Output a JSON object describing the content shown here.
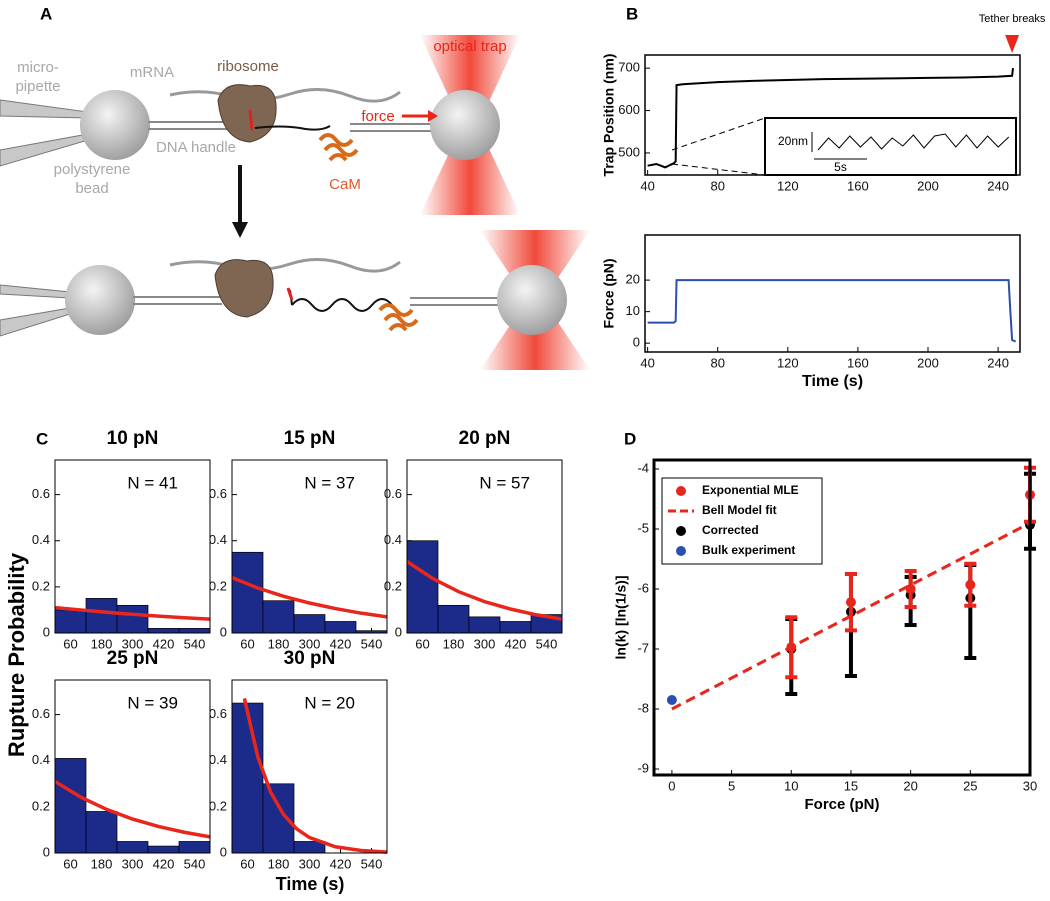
{
  "panel_labels": [
    "A",
    "B",
    "C",
    "D"
  ],
  "diagram": {
    "pipette": [
      "micro-",
      "pipette"
    ],
    "bead": [
      "polystyrene",
      "bead"
    ],
    "mrna": "mRNA",
    "ribosome": "ribosome",
    "dna_handle": "DNA handle",
    "cam": "CaM",
    "force": "force",
    "optical_trap": "optical trap"
  },
  "figure_c": {
    "ylabel": "Rupture Probability",
    "xlabel": "Time (s)"
  },
  "chart_data": [
    {
      "type": "line",
      "ylabel": "Trap Position (nm)",
      "xlim": [
        38.5,
        252.5
      ],
      "ylim": [
        448,
        731
      ],
      "xticks": [
        40,
        80,
        120,
        160,
        200,
        240
      ],
      "yticks": [
        500,
        600,
        700
      ],
      "x": [
        40,
        45,
        50,
        55,
        56,
        56.5,
        60,
        80,
        100,
        120,
        140,
        160,
        180,
        200,
        220,
        240,
        248,
        248.5
      ],
      "series": [
        {
          "color": "#000000",
          "values": [
            470,
            474,
            466,
            476,
            480,
            660,
            662,
            667,
            670,
            672,
            674,
            675,
            676,
            677,
            678,
            680,
            682,
            700
          ]
        }
      ],
      "annotation": {
        "text": "Tether breaks",
        "x": 248
      },
      "inset": {
        "x": [
          0,
          1,
          2,
          3,
          4,
          5,
          6,
          7,
          8,
          9,
          10,
          11,
          12,
          13,
          14,
          15,
          16,
          17,
          18
        ],
        "values": [
          0,
          12,
          2,
          14,
          3,
          13,
          1,
          12,
          4,
          15,
          2,
          14,
          16,
          3,
          15,
          2,
          14,
          3,
          13
        ],
        "scalebar_y": {
          "value": 20,
          "label": "20nm"
        },
        "scalebar_x": {
          "value": 5,
          "label": "5s"
        }
      }
    },
    {
      "type": "line",
      "ylabel": "Force (pN)",
      "xlabel": "Time (s)",
      "xlim": [
        38.5,
        252.5
      ],
      "ylim": [
        -2.8,
        34.3
      ],
      "xticks": [
        40,
        80,
        120,
        160,
        200,
        240
      ],
      "yticks": [
        0,
        10,
        20
      ],
      "x": [
        40,
        55,
        56,
        56.5,
        100,
        150,
        200,
        246,
        247,
        248,
        250
      ],
      "series": [
        {
          "color": "#2b4fb0",
          "values": [
            6.5,
            6.5,
            7,
            20,
            20,
            20,
            20,
            20,
            10,
            1,
            0.5
          ]
        }
      ]
    },
    {
      "type": "histogram",
      "title": "10 pN",
      "annotation": "N = 41",
      "color": "#1c2a8a",
      "bins": [
        0,
        120,
        240,
        360,
        480,
        600
      ],
      "values": [
        0.1,
        0.15,
        0.12,
        0.02,
        0.02
      ],
      "xlim": [
        0,
        600
      ],
      "ylim": [
        0,
        0.75
      ],
      "xticks": [
        60,
        180,
        300,
        420,
        540
      ],
      "yticks": [
        0,
        0.2,
        0.4,
        0.6
      ],
      "fit": {
        "color": "#e8261c",
        "x": [
          0,
          100,
          200,
          300,
          400,
          500,
          600
        ],
        "values": [
          0.11,
          0.1,
          0.09,
          0.081,
          0.073,
          0.066,
          0.06
        ]
      }
    },
    {
      "type": "histogram",
      "title": "15 pN",
      "annotation": "N = 37",
      "color": "#1c2a8a",
      "bins": [
        0,
        120,
        240,
        360,
        480,
        600
      ],
      "values": [
        0.35,
        0.14,
        0.08,
        0.05,
        0.01
      ],
      "xlim": [
        0,
        600
      ],
      "ylim": [
        0,
        0.75
      ],
      "xticks": [
        60,
        180,
        300,
        420,
        540
      ],
      "yticks": [
        0,
        0.2,
        0.4,
        0.6
      ],
      "fit": {
        "color": "#e8261c",
        "x": [
          0,
          100,
          200,
          300,
          400,
          500,
          600
        ],
        "values": [
          0.24,
          0.195,
          0.159,
          0.13,
          0.106,
          0.086,
          0.07
        ]
      }
    },
    {
      "type": "histogram",
      "title": "20 pN",
      "annotation": "N = 57",
      "color": "#1c2a8a",
      "bins": [
        0,
        120,
        240,
        360,
        480,
        600
      ],
      "values": [
        0.4,
        0.12,
        0.07,
        0.05,
        0.08
      ],
      "xlim": [
        0,
        600
      ],
      "ylim": [
        0,
        0.75
      ],
      "xticks": [
        60,
        180,
        300,
        420,
        540
      ],
      "yticks": [
        0,
        0.2,
        0.4,
        0.6
      ],
      "fit": {
        "color": "#e8261c",
        "x": [
          0,
          100,
          200,
          300,
          400,
          500,
          600
        ],
        "values": [
          0.31,
          0.236,
          0.179,
          0.136,
          0.104,
          0.079,
          0.06
        ]
      }
    },
    {
      "type": "histogram",
      "title": "25 pN",
      "annotation": "N = 39",
      "color": "#1c2a8a",
      "bins": [
        0,
        120,
        240,
        360,
        480,
        600
      ],
      "values": [
        0.41,
        0.18,
        0.05,
        0.03,
        0.05
      ],
      "xlim": [
        0,
        600
      ],
      "ylim": [
        0,
        0.75
      ],
      "xticks": [
        60,
        180,
        300,
        420,
        540
      ],
      "yticks": [
        0,
        0.2,
        0.4,
        0.6
      ],
      "fit": {
        "color": "#e8261c",
        "x": [
          0,
          100,
          200,
          300,
          400,
          500,
          600
        ],
        "values": [
          0.31,
          0.242,
          0.189,
          0.147,
          0.115,
          0.09,
          0.07
        ]
      }
    },
    {
      "type": "histogram",
      "title": "30 pN",
      "annotation": "N = 20",
      "color": "#1c2a8a",
      "bins": [
        0,
        120,
        240,
        360,
        480,
        600
      ],
      "values": [
        0.65,
        0.3,
        0.05,
        0.0,
        0.0
      ],
      "xlim": [
        0,
        600
      ],
      "ylim": [
        0,
        0.75
      ],
      "xticks": [
        60,
        180,
        300,
        420,
        540
      ],
      "yticks": [
        0,
        0.2,
        0.4,
        0.6
      ],
      "fit": {
        "color": "#e8261c",
        "x": [
          48,
          100,
          150,
          200,
          250,
          300,
          400,
          500,
          600
        ],
        "values": [
          0.67,
          0.416,
          0.263,
          0.166,
          0.105,
          0.067,
          0.027,
          0.011,
          0.004
        ]
      }
    },
    {
      "type": "scatter",
      "xlabel": "Force (pN)",
      "ylabel": "ln(k) [ln(1/s)]",
      "legend": "upper left",
      "xlim": [
        -1.5,
        30
      ],
      "ylim": [
        -9.1,
        -3.85
      ],
      "xticks": [
        0,
        5,
        10,
        15,
        20,
        25,
        30
      ],
      "yticks": [
        -9,
        -8,
        -7,
        -6,
        -5,
        -4
      ],
      "series": [
        {
          "name": "Exponential MLE",
          "color": "#e8261c",
          "x": [
            10,
            15,
            20,
            25,
            30
          ],
          "values": [
            -6.97,
            -6.22,
            -6.0,
            -5.93,
            -4.43
          ],
          "error": [
            0.5,
            0.47,
            0.3,
            0.35,
            0.45
          ]
        },
        {
          "name": "Bell Model fit",
          "color": "#e8261c",
          "style": "dashed",
          "x": [
            0,
            30
          ],
          "values": [
            -8.0,
            -4.9
          ]
        },
        {
          "name": "Corrected",
          "color": "#000000",
          "x": [
            10,
            15,
            20,
            25,
            30
          ],
          "values": [
            -7.0,
            -6.38,
            -6.1,
            -6.15,
            -4.93
          ],
          "error_low": [
            0.75,
            1.07,
            0.5,
            1.0,
            0.4
          ],
          "error_high": [
            0.5,
            0.63,
            0.3,
            0.55,
            0.85
          ]
        },
        {
          "name": "Bulk experiment",
          "color": "#2b4fb0",
          "x": [
            0
          ],
          "values": [
            -7.85
          ]
        }
      ]
    }
  ]
}
